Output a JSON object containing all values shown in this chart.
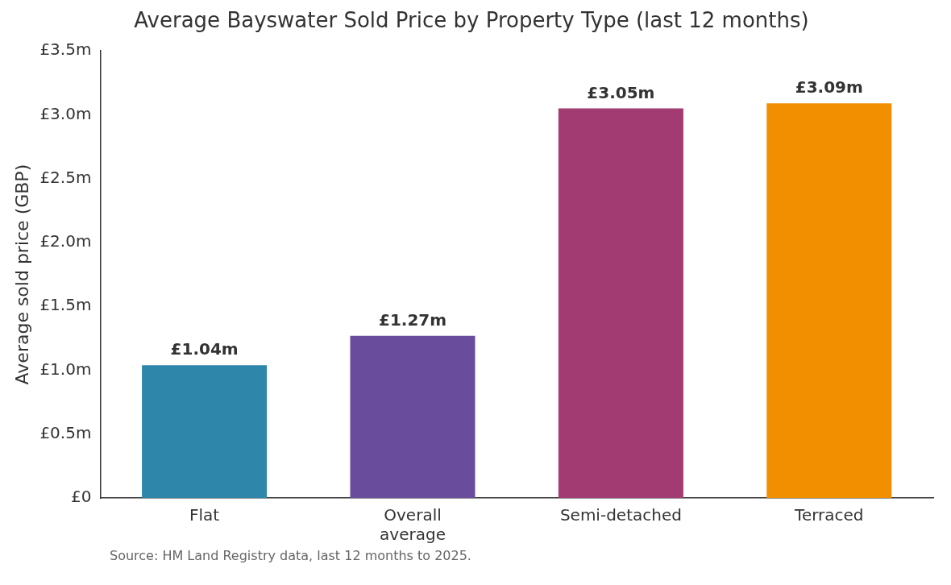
{
  "chart_data": {
    "type": "bar",
    "title": "Average Bayswater Sold Price by Property Type (last 12 months)",
    "ylabel": "Average sold price (GBP)",
    "categories": [
      "Flat",
      "Overall average",
      "Semi-detached",
      "Terraced"
    ],
    "values": [
      1.04,
      1.27,
      3.05,
      3.09
    ],
    "colors": [
      "#2e86ab",
      "#6a4c9c",
      "#a23b72",
      "#f18f01"
    ],
    "value_labels": [
      "£1.04m",
      "£1.27m",
      "£3.05m",
      "£3.09m"
    ],
    "ylim": [
      0,
      3.5
    ],
    "yticks": [
      {
        "value": 0,
        "label": "£0"
      },
      {
        "value": 0.5,
        "label": "£0.5m"
      },
      {
        "value": 1,
        "label": "£1.0m"
      },
      {
        "value": 1.5,
        "label": "£1.5m"
      },
      {
        "value": 2,
        "label": "£2.0m"
      },
      {
        "value": 2.5,
        "label": "£2.5m"
      },
      {
        "value": 3,
        "label": "£3.0m"
      },
      {
        "value": 3.5,
        "label": "£3.5m"
      }
    ],
    "grid": false,
    "legend": false,
    "annotations": [
      "Source: HM Land Registry data, last 12 months to 2025."
    ]
  }
}
